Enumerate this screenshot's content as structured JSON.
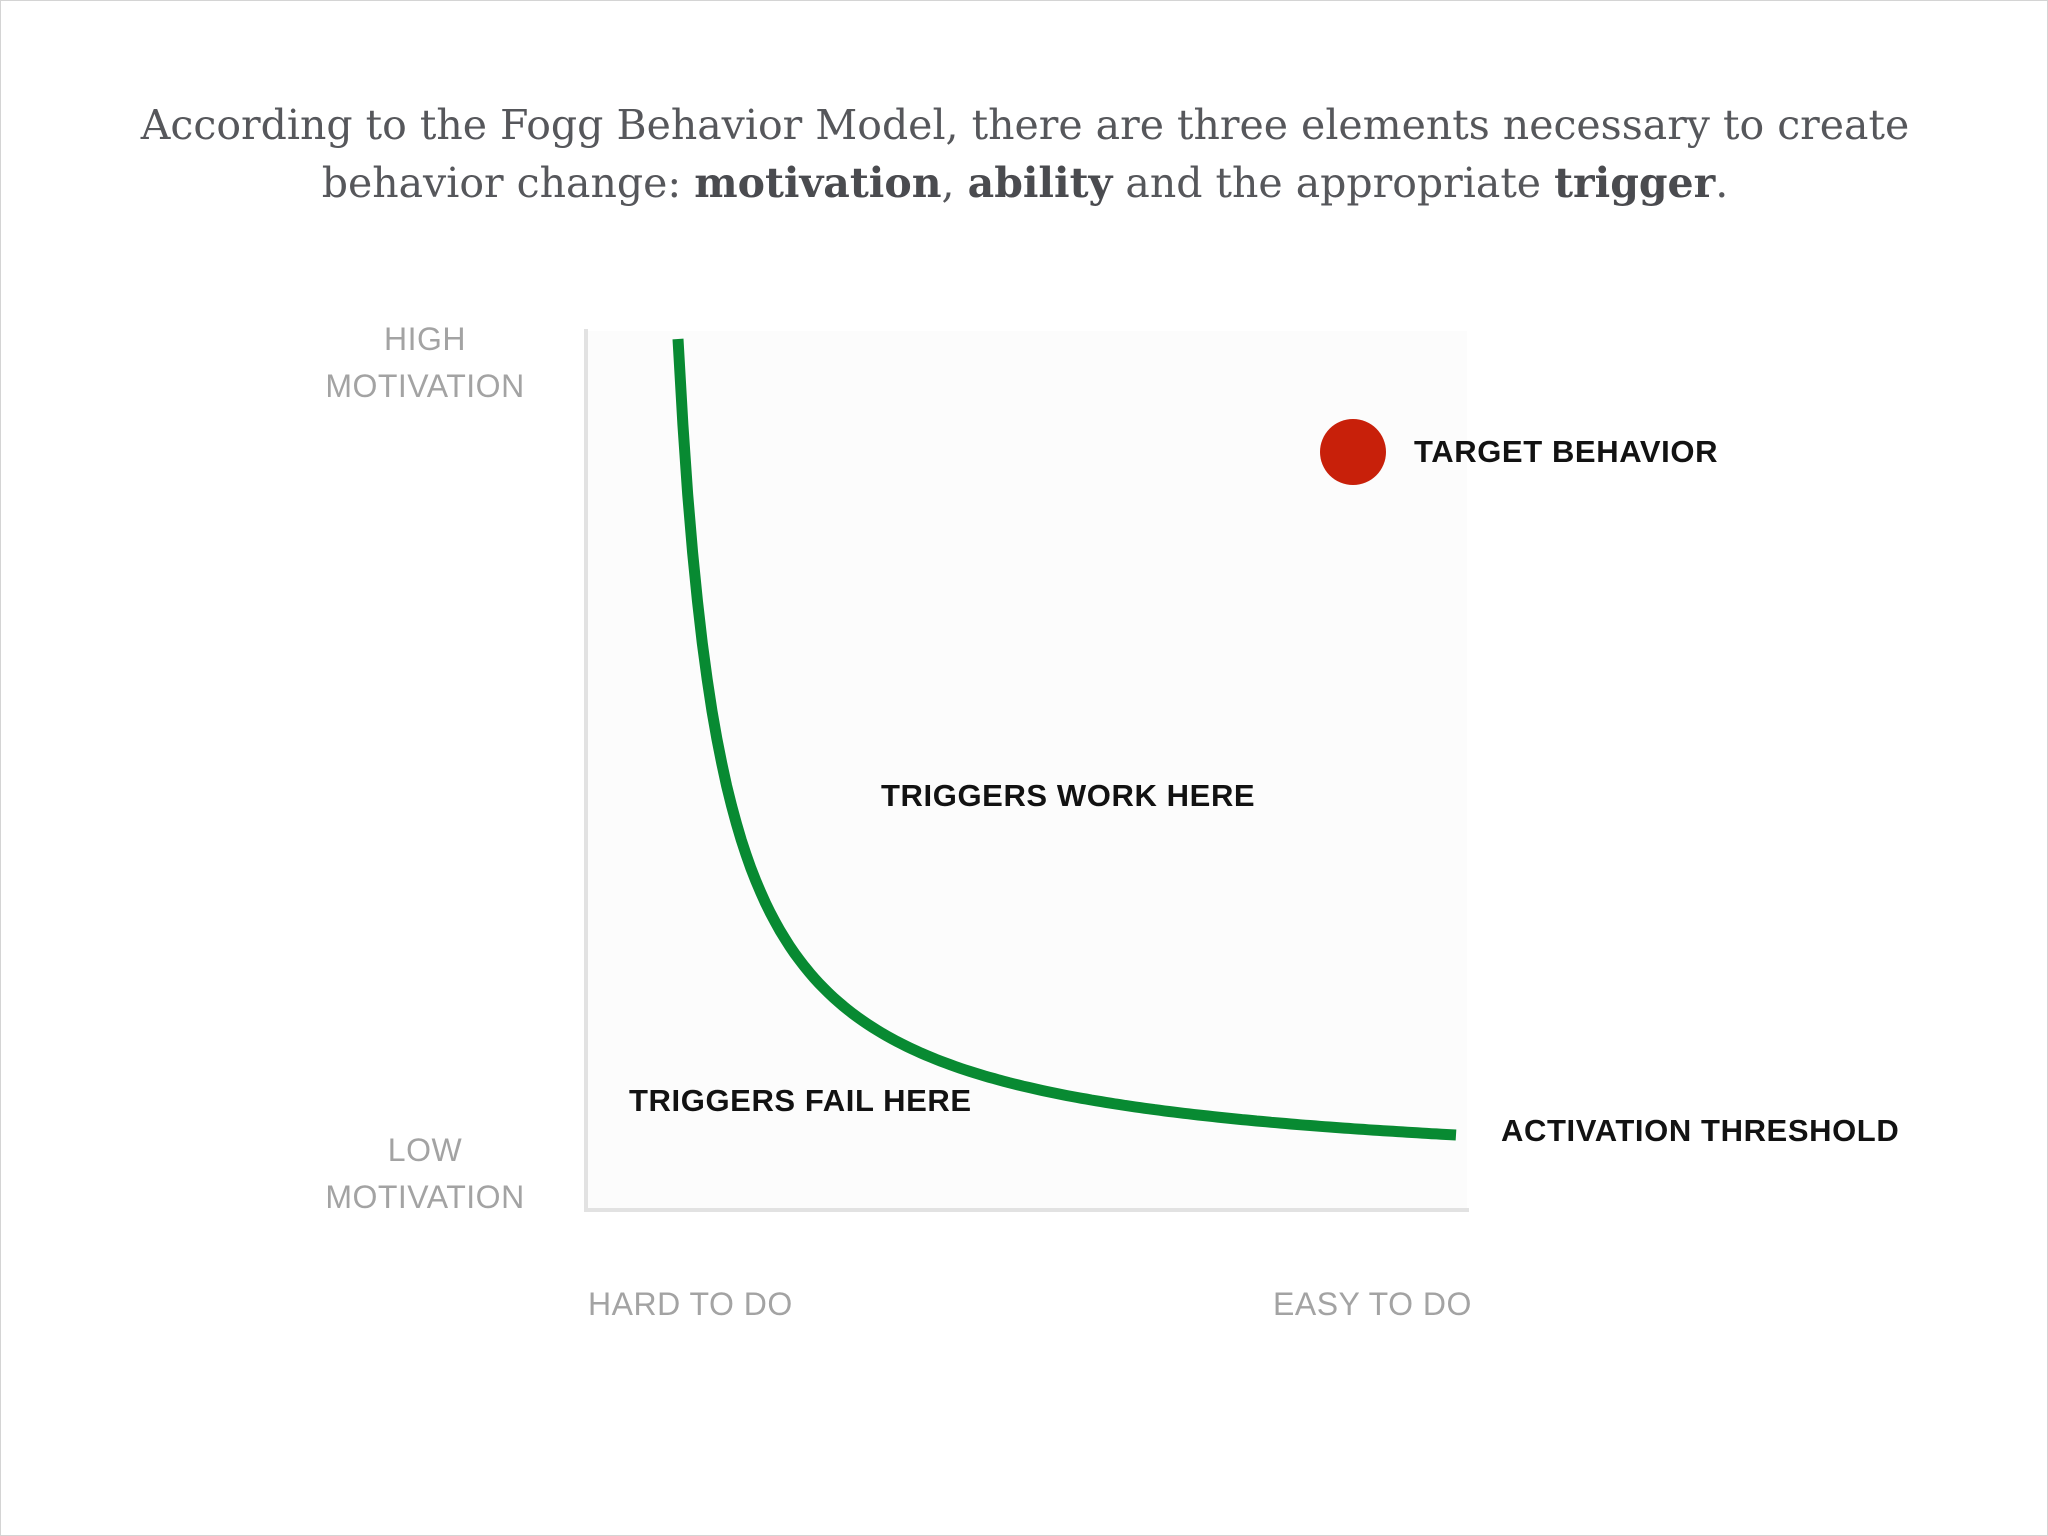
{
  "headline": {
    "line1": "According to the Fogg Behavior Model, there are three elements necessary to create",
    "line2_prefix": "behavior change: ",
    "bold_motivation": "motivation",
    "sep_comma": ", ",
    "bold_ability": "ability",
    "mid_text": " and the appropriate ",
    "bold_trigger": "trigger",
    "end_punct": "."
  },
  "axes": {
    "y_high": {
      "line1": "HIGH",
      "line2": "MOTIVATION"
    },
    "y_low": {
      "line1": "LOW",
      "line2": "MOTIVATION"
    },
    "x_left": "HARD TO DO",
    "x_right": "EASY TO DO"
  },
  "labels": {
    "target": "TARGET BEHAVIOR",
    "work": "TRIGGERS WORK HERE",
    "fail": "TRIGGERS FAIL HERE",
    "threshold": "ACTIVATION THRESHOLD"
  },
  "colors": {
    "curve": "#088a32",
    "target_dot": "#c8200a",
    "axis_line": "#e2e2e2",
    "label_text": "#121212",
    "axis_text": "#a3a3a3",
    "headline_text": "#56575b"
  }
}
